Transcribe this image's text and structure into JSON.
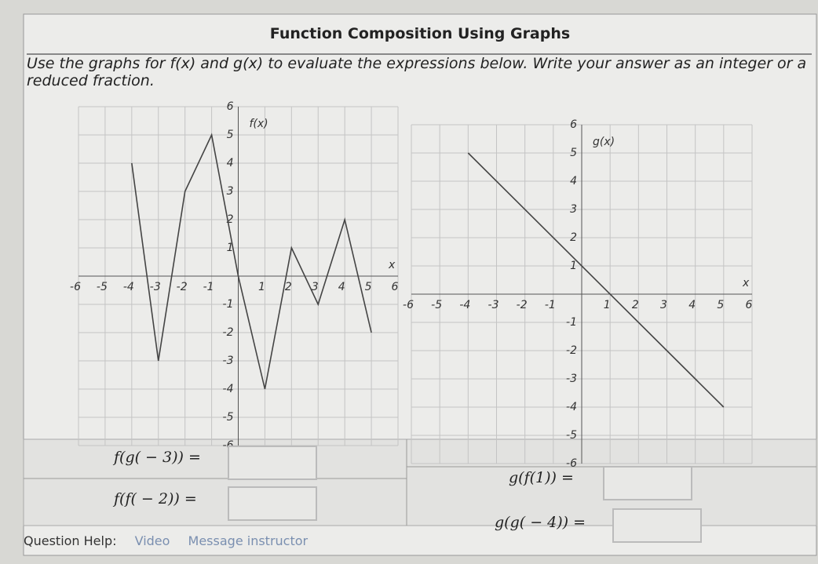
{
  "header": {
    "title": "Function Composition Using Graphs",
    "instructions": "Use the graphs for f(x) and g(x) to evaluate the expressions below. Write your answer as an integer or a reduced fraction."
  },
  "chart_data": [
    {
      "type": "line",
      "label": "f(x)",
      "xlabel": "x",
      "color": "#444444",
      "x": [
        -4,
        -3,
        -2,
        -1,
        0,
        1,
        2,
        3,
        4,
        5
      ],
      "values": [
        4,
        -3,
        3,
        5,
        0,
        -4,
        1,
        -1,
        2,
        -2
      ],
      "xlim": [
        -6,
        6
      ],
      "ylim": [
        -6,
        6
      ],
      "xticks": [
        -6,
        -5,
        -4,
        -3,
        -2,
        -1,
        1,
        2,
        3,
        4,
        5,
        6
      ],
      "yticks": [
        -6,
        -5,
        -4,
        -3,
        -2,
        -1,
        1,
        2,
        3,
        4,
        5,
        6
      ],
      "grid": true
    },
    {
      "type": "line",
      "label": "g(x)",
      "xlabel": "x",
      "color": "#444444",
      "x": [
        -4,
        5
      ],
      "values": [
        5,
        -4
      ],
      "xlim": [
        -6,
        6
      ],
      "ylim": [
        -6,
        6
      ],
      "xticks": [
        -6,
        -5,
        -4,
        -3,
        -2,
        -1,
        1,
        2,
        3,
        4,
        5,
        6
      ],
      "yticks": [
        -6,
        -5,
        -4,
        -3,
        -2,
        -1,
        1,
        2,
        3,
        4,
        5,
        6
      ],
      "grid": true
    }
  ],
  "questions": [
    "f(g( − 3)) =",
    "g(f(1)) =",
    "f(f( − 2)) =",
    "g(g( − 4)) ="
  ],
  "footer": {
    "help": "Question Help:",
    "video": "Video",
    "message": "Message instructor"
  }
}
